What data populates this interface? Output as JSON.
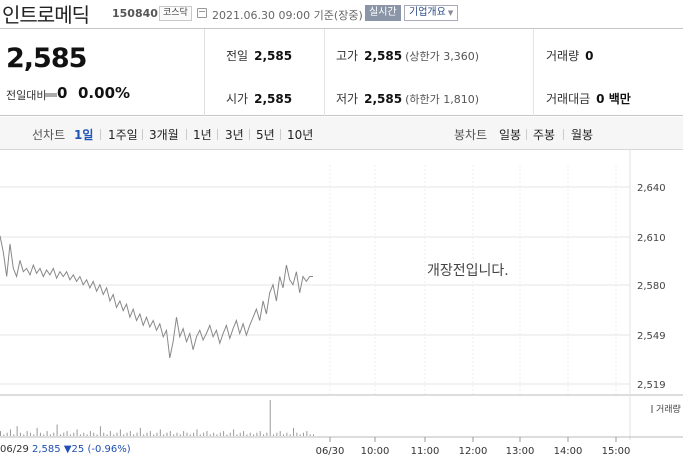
{
  "header": {
    "stock_name": "인트로메딕",
    "stock_code": "150840",
    "market": "코스닥",
    "datetime": "2021.06.30 09:00 기준(장중)",
    "realtime": "실시간",
    "company_info": "기업개요"
  },
  "summary": {
    "price": "2,585",
    "change_label": "전일대비",
    "change": "0",
    "change_rate": "0.00%",
    "prev_close_label": "전일",
    "prev_close": "2,585",
    "high_label": "고가",
    "high": "2,585",
    "upper_limit": "(상한가 3,360)",
    "volume_label": "거래량",
    "volume": "0",
    "open_label": "시가",
    "open": "2,585",
    "low_label": "저가",
    "low": "2,585",
    "lower_limit": "(하한가 1,810)",
    "amount_label": "거래대금",
    "amount": "0 백만"
  },
  "tabs": {
    "line_label": "선차트",
    "line_tabs": [
      "1일",
      "1주일",
      "3개월",
      "1년",
      "3년",
      "5년",
      "10년"
    ],
    "candle_label": "봉차트",
    "candle_tabs": [
      "일봉",
      "주봉",
      "월봉"
    ]
  },
  "chart_overlay": "개장전입니다.",
  "chart_bottom": {
    "date": "06/29",
    "price": "2,585",
    "change": "▼25",
    "rate": "(-0.96%)"
  },
  "volume_legend": "거래량",
  "chart_data": {
    "type": "line",
    "y_ticks": [
      "2,640",
      "2,610",
      "2,580",
      "2,549",
      "2,519"
    ],
    "x_ticks": [
      "06/30",
      "10:00",
      "11:00",
      "12:00",
      "13:00",
      "14:00",
      "15:00"
    ],
    "ylim": [
      2519,
      2640
    ],
    "series": [
      {
        "values": [
          2610,
          2600,
          2585,
          2605,
          2590,
          2585,
          2595,
          2588,
          2590,
          2586,
          2592,
          2587,
          2590,
          2585,
          2589,
          2586,
          2590,
          2584,
          2588,
          2585,
          2588,
          2583,
          2586,
          2582,
          2585,
          2580,
          2583,
          2578,
          2582,
          2576,
          2580,
          2574,
          2578,
          2570,
          2574,
          2566,
          2570,
          2564,
          2568,
          2560,
          2565,
          2558,
          2562,
          2555,
          2560,
          2554,
          2558,
          2552,
          2556,
          2548,
          2552,
          2535,
          2545,
          2560,
          2548,
          2553,
          2545,
          2550,
          2540,
          2548,
          2552,
          2546,
          2550,
          2555,
          2548,
          2552,
          2544,
          2550,
          2555,
          2547,
          2553,
          2558,
          2550,
          2556,
          2549,
          2555,
          2560,
          2565,
          2558,
          2570,
          2562,
          2575,
          2580,
          2570,
          2585,
          2578,
          2592,
          2583,
          2580,
          2588,
          2575,
          2585,
          2582,
          2585,
          2585
        ],
        "color": "#888888"
      }
    ],
    "volume": [
      3,
      1,
      2,
      4,
      1,
      6,
      2,
      1,
      3,
      2,
      1,
      5,
      2,
      1,
      3,
      1,
      2,
      7,
      1,
      2,
      3,
      1,
      2,
      4,
      1,
      2,
      1,
      3,
      2,
      1,
      6,
      2,
      1,
      3,
      1,
      2,
      4,
      1,
      2,
      3,
      1,
      2,
      5,
      1,
      2,
      3,
      1,
      2,
      4,
      1,
      2,
      3,
      1,
      2,
      1,
      3,
      2,
      1,
      2,
      4,
      1,
      2,
      3,
      1,
      2,
      1,
      2,
      3,
      1,
      2,
      4,
      1,
      2,
      3,
      1,
      2,
      1,
      2,
      3,
      1,
      2,
      22,
      1,
      2,
      3,
      1,
      2,
      1,
      5,
      2,
      1,
      2,
      3,
      1,
      1
    ],
    "volume_color": "#999999"
  }
}
